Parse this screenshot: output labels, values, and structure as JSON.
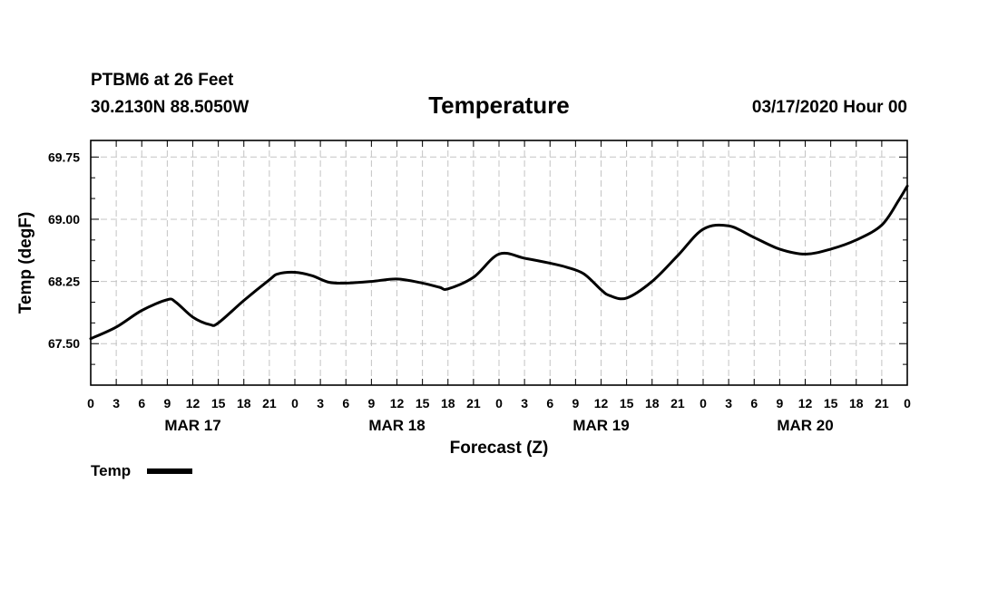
{
  "header": {
    "station": "PTBM6 at 26 Feet",
    "coords": "30.2130N 88.5050W",
    "title": "Temperature",
    "date": "03/17/2020 Hour 00"
  },
  "legend": {
    "label": "Temp",
    "color": "#000000"
  },
  "chart_data": {
    "type": "line",
    "title": "Temperature",
    "xlabel": "Forecast (Z)",
    "ylabel": "Temp (degF)",
    "xlim": [
      0,
      96
    ],
    "ylim": [
      67.0,
      69.95
    ],
    "yticks": [
      67.5,
      68.25,
      69.0,
      69.75
    ],
    "ytick_labels": [
      "67.50",
      "68.25",
      "69.00",
      "69.75"
    ],
    "xtick_hours": [
      0,
      3,
      6,
      9,
      12,
      15,
      18,
      21,
      24,
      27,
      30,
      33,
      36,
      39,
      42,
      45,
      48,
      51,
      54,
      57,
      60,
      63,
      66,
      69,
      72,
      75,
      78,
      81,
      84,
      87,
      90,
      93,
      96
    ],
    "xtick_labels": [
      "0",
      "3",
      "6",
      "9",
      "12",
      "15",
      "18",
      "21",
      "0",
      "3",
      "6",
      "9",
      "12",
      "15",
      "18",
      "21",
      "0",
      "3",
      "6",
      "9",
      "12",
      "15",
      "18",
      "21",
      "0",
      "3",
      "6",
      "9",
      "12",
      "15",
      "18",
      "21",
      "0"
    ],
    "day_labels": [
      {
        "text": "MAR 17",
        "hour": 12
      },
      {
        "text": "MAR 18",
        "hour": 36
      },
      {
        "text": "MAR 19",
        "hour": 60
      },
      {
        "text": "MAR 20",
        "hour": 84
      }
    ],
    "grid": true,
    "series": [
      {
        "name": "Temp",
        "color": "#000000",
        "x": [
          0,
          3,
          6,
          9,
          10,
          12,
          14,
          15,
          18,
          21,
          22,
          24,
          26,
          28,
          30,
          33,
          36,
          39,
          41,
          42,
          45,
          48,
          51,
          54,
          56,
          58,
          60,
          61,
          63,
          66,
          69,
          72,
          75,
          78,
          81,
          84,
          87,
          90,
          93,
          95,
          96
        ],
        "y": [
          67.56,
          67.7,
          67.9,
          68.03,
          68.0,
          67.82,
          67.73,
          67.75,
          68.02,
          68.27,
          68.34,
          68.36,
          68.32,
          68.24,
          68.23,
          68.25,
          68.28,
          68.23,
          68.18,
          68.16,
          68.3,
          68.58,
          68.53,
          68.47,
          68.42,
          68.34,
          68.15,
          68.08,
          68.05,
          68.25,
          68.56,
          68.88,
          68.92,
          68.78,
          68.64,
          68.58,
          68.64,
          68.75,
          68.93,
          69.23,
          69.4
        ]
      }
    ]
  }
}
